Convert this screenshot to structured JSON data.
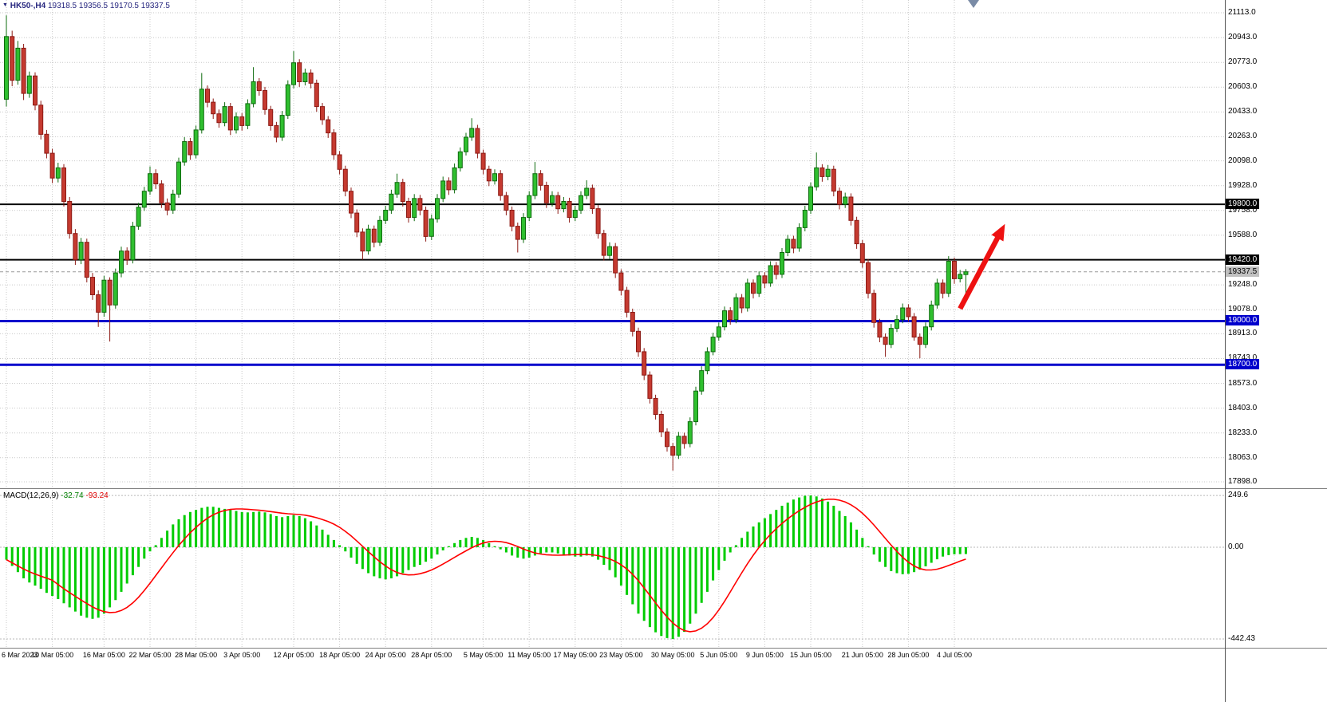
{
  "header": {
    "title": "HK50-,H4",
    "ohlc_text": "19318.5 19356.5 19170.5 19337.5"
  },
  "icons": {
    "chart_menu_arrow": "▼"
  },
  "colors": {
    "background": "#FFFFFF",
    "grid": "#C9C9C9",
    "up_fill": "#2FBF2F",
    "up_border": "#0E6B0E",
    "down_fill": "#C53A30",
    "down_border": "#8C1A14",
    "macd_histogram": "#00CC00",
    "macd_signal": "#FF0000",
    "level_black": "#000000",
    "level_blue": "#0000CC",
    "bid_line": "#999999",
    "arrow": "#EE1111",
    "title_text": "#26267F"
  },
  "chart_data": {
    "type": "candlestick",
    "symbol": "HK50-",
    "timeframe": "H4",
    "last_ohlc": {
      "open": 19318.5,
      "high": 19356.5,
      "low": 19170.5,
      "close": 19337.5
    },
    "price_axis_values": [
      21113.0,
      20943.0,
      20773.0,
      20603.0,
      20433.0,
      20263.0,
      20098.0,
      19928.0,
      19758.0,
      19588.0,
      19248.0,
      19078.0,
      18913.0,
      18743.0,
      18573.0,
      18403.0,
      18233.0,
      18063.0,
      17898.0
    ],
    "time_axis": [
      {
        "bar": 0,
        "label": "6 Mar 2023"
      },
      {
        "bar": 8,
        "label": "10 Mar 05:00"
      },
      {
        "bar": 17,
        "label": "16 Mar 05:00"
      },
      {
        "bar": 25,
        "label": "22 Mar 05:00"
      },
      {
        "bar": 33,
        "label": "28 Mar 05:00"
      },
      {
        "bar": 41,
        "label": "3 Apr 05:00"
      },
      {
        "bar": 50,
        "label": "12 Apr 05:00"
      },
      {
        "bar": 58,
        "label": "18 Apr 05:00"
      },
      {
        "bar": 66,
        "label": "24 Apr 05:00"
      },
      {
        "bar": 74,
        "label": "28 Apr 05:00"
      },
      {
        "bar": 83,
        "label": "5 May 05:00"
      },
      {
        "bar": 91,
        "label": "11 May 05:00"
      },
      {
        "bar": 99,
        "label": "17 May 05:00"
      },
      {
        "bar": 107,
        "label": "23 May 05:00"
      },
      {
        "bar": 116,
        "label": "30 May 05:00"
      },
      {
        "bar": 124,
        "label": "5 Jun 05:00"
      },
      {
        "bar": 132,
        "label": "9 Jun 05:00"
      },
      {
        "bar": 140,
        "label": "15 Jun 05:00"
      },
      {
        "bar": 149,
        "label": "21 Jun 05:00"
      },
      {
        "bar": 157,
        "label": "28 Jun 05:00"
      },
      {
        "bar": 165,
        "label": "4 Jul 05:00"
      }
    ],
    "levels": [
      {
        "price": 19800.0,
        "label": "19800.0",
        "color": "#000000",
        "line_width": 2,
        "label_bg": "#000000",
        "label_color": "#FFFFFF"
      },
      {
        "price": 19420.0,
        "label": "19420.0",
        "color": "#000000",
        "line_width": 2,
        "label_bg": "#000000",
        "label_color": "#FFFFFF"
      },
      {
        "price": 19000.0,
        "label": "19000.0",
        "color": "#0000CC",
        "line_width": 3,
        "label_bg": "#0000CC",
        "label_color": "#FFFFFF"
      },
      {
        "price": 18700.0,
        "label": "18700.0",
        "color": "#0000CC",
        "line_width": 3,
        "label_bg": "#0000CC",
        "label_color": "#FFFFFF"
      }
    ],
    "bid_line": {
      "price": 19337.5,
      "label": "19337.5",
      "color": "#999999",
      "label_bg": "#C0C0C0",
      "label_color": "#000000"
    },
    "arrow": {
      "from_bar": 166,
      "from_price": 19085,
      "to_bar": 173.8,
      "to_price": 19665,
      "color": "#EE1111"
    },
    "candles": [
      [
        20520,
        21095,
        20470,
        20950
      ],
      [
        20950,
        20990,
        20610,
        20650
      ],
      [
        20650,
        20920,
        20620,
        20870
      ],
      [
        20870,
        20900,
        20515,
        20560
      ],
      [
        20560,
        20710,
        20530,
        20680
      ],
      [
        20680,
        20705,
        20445,
        20480
      ],
      [
        20480,
        20510,
        20245,
        20280
      ],
      [
        20280,
        20310,
        20115,
        20150
      ],
      [
        20150,
        20180,
        19945,
        19980
      ],
      [
        19980,
        20085,
        19950,
        20050
      ],
      [
        20050,
        20075,
        19785,
        19820
      ],
      [
        19820,
        19850,
        19565,
        19600
      ],
      [
        19600,
        19630,
        19385,
        19420
      ],
      [
        19420,
        19570,
        19390,
        19540
      ],
      [
        19540,
        19565,
        19265,
        19300
      ],
      [
        19300,
        19330,
        19145,
        19180
      ],
      [
        19180,
        19210,
        18960,
        19060
      ],
      [
        19060,
        19310,
        19030,
        19280
      ],
      [
        19280,
        19300,
        18860,
        19110
      ],
      [
        19110,
        19360,
        19085,
        19330
      ],
      [
        19330,
        19510,
        19300,
        19480
      ],
      [
        19480,
        19505,
        19385,
        19420
      ],
      [
        19420,
        19680,
        19395,
        19650
      ],
      [
        19650,
        19810,
        19625,
        19780
      ],
      [
        19780,
        19920,
        19755,
        19890
      ],
      [
        19890,
        20060,
        19865,
        20010
      ],
      [
        20010,
        20040,
        19905,
        19940
      ],
      [
        19940,
        19965,
        19775,
        19810
      ],
      [
        19810,
        19840,
        19725,
        19760
      ],
      [
        19760,
        19900,
        19735,
        19870
      ],
      [
        19870,
        20120,
        19845,
        20090
      ],
      [
        20090,
        20260,
        20065,
        20230
      ],
      [
        20230,
        20255,
        20105,
        20140
      ],
      [
        20140,
        20340,
        20115,
        20310
      ],
      [
        20310,
        20700,
        20285,
        20590
      ],
      [
        20590,
        20615,
        20465,
        20500
      ],
      [
        20500,
        20525,
        20385,
        20420
      ],
      [
        20420,
        20450,
        20325,
        20360
      ],
      [
        20360,
        20500,
        20335,
        20470
      ],
      [
        20470,
        20495,
        20275,
        20310
      ],
      [
        20310,
        20430,
        20285,
        20400
      ],
      [
        20400,
        20425,
        20305,
        20340
      ],
      [
        20340,
        20520,
        20315,
        20490
      ],
      [
        20490,
        20740,
        20465,
        20640
      ],
      [
        20640,
        20665,
        20545,
        20580
      ],
      [
        20580,
        20605,
        20415,
        20450
      ],
      [
        20450,
        20475,
        20305,
        20340
      ],
      [
        20340,
        20365,
        20225,
        20260
      ],
      [
        20260,
        20440,
        20235,
        20410
      ],
      [
        20410,
        20650,
        20385,
        20620
      ],
      [
        20620,
        20850,
        20595,
        20770
      ],
      [
        20770,
        20795,
        20605,
        20640
      ],
      [
        20640,
        20730,
        20615,
        20700
      ],
      [
        20700,
        20725,
        20595,
        20630
      ],
      [
        20630,
        20655,
        20435,
        20470
      ],
      [
        20470,
        20495,
        20345,
        20380
      ],
      [
        20380,
        20405,
        20255,
        20290
      ],
      [
        20290,
        20315,
        20105,
        20140
      ],
      [
        20140,
        20165,
        20005,
        20040
      ],
      [
        20040,
        20065,
        19855,
        19890
      ],
      [
        19890,
        19915,
        19705,
        19740
      ],
      [
        19740,
        19765,
        19575,
        19610
      ],
      [
        19610,
        19635,
        19420,
        19480
      ],
      [
        19480,
        19660,
        19455,
        19630
      ],
      [
        19630,
        19655,
        19505,
        19540
      ],
      [
        19540,
        19720,
        19515,
        19690
      ],
      [
        19690,
        19790,
        19665,
        19760
      ],
      [
        19760,
        19900,
        19735,
        19870
      ],
      [
        19870,
        20010,
        19845,
        19950
      ],
      [
        19950,
        19975,
        19785,
        19820
      ],
      [
        19820,
        19845,
        19675,
        19710
      ],
      [
        19710,
        19870,
        19685,
        19840
      ],
      [
        19840,
        19865,
        19725,
        19760
      ],
      [
        19760,
        19785,
        19545,
        19580
      ],
      [
        19580,
        19730,
        19555,
        19700
      ],
      [
        19700,
        19870,
        19675,
        19840
      ],
      [
        19840,
        19990,
        19815,
        19960
      ],
      [
        19960,
        19985,
        19865,
        19900
      ],
      [
        19900,
        20080,
        19875,
        20050
      ],
      [
        20050,
        20190,
        20025,
        20160
      ],
      [
        20160,
        20290,
        20135,
        20260
      ],
      [
        20260,
        20390,
        20235,
        20320
      ],
      [
        20320,
        20345,
        20115,
        20150
      ],
      [
        20150,
        20175,
        20005,
        20040
      ],
      [
        20040,
        20065,
        19925,
        19960
      ],
      [
        19960,
        20040,
        19935,
        20010
      ],
      [
        20010,
        20035,
        19825,
        19860
      ],
      [
        19860,
        19885,
        19725,
        19760
      ],
      [
        19760,
        19785,
        19615,
        19650
      ],
      [
        19650,
        19675,
        19470,
        19560
      ],
      [
        19560,
        19740,
        19535,
        19710
      ],
      [
        19710,
        19890,
        19685,
        19860
      ],
      [
        19860,
        20090,
        19835,
        20010
      ],
      [
        20010,
        20035,
        19895,
        19930
      ],
      [
        19930,
        19955,
        19775,
        19810
      ],
      [
        19810,
        19890,
        19785,
        19860
      ],
      [
        19860,
        19885,
        19735,
        19770
      ],
      [
        19770,
        19850,
        19745,
        19820
      ],
      [
        19820,
        19845,
        19675,
        19710
      ],
      [
        19710,
        19790,
        19685,
        19760
      ],
      [
        19760,
        19890,
        19735,
        19860
      ],
      [
        19860,
        19965,
        19835,
        19910
      ],
      [
        19910,
        19935,
        19735,
        19770
      ],
      [
        19770,
        19795,
        19565,
        19600
      ],
      [
        19600,
        19625,
        19415,
        19450
      ],
      [
        19450,
        19540,
        19425,
        19510
      ],
      [
        19510,
        19535,
        19295,
        19330
      ],
      [
        19330,
        19355,
        19175,
        19210
      ],
      [
        19210,
        19235,
        19025,
        19060
      ],
      [
        19060,
        19085,
        18895,
        18930
      ],
      [
        18930,
        18955,
        18755,
        18790
      ],
      [
        18790,
        18815,
        18595,
        18630
      ],
      [
        18630,
        18655,
        18435,
        18470
      ],
      [
        18470,
        18495,
        18325,
        18360
      ],
      [
        18360,
        18385,
        18205,
        18240
      ],
      [
        18240,
        18265,
        18105,
        18140
      ],
      [
        18140,
        18165,
        17975,
        18080
      ],
      [
        18080,
        18240,
        18055,
        18210
      ],
      [
        18210,
        18235,
        18125,
        18160
      ],
      [
        18160,
        18340,
        18135,
        18310
      ],
      [
        18310,
        18550,
        18285,
        18520
      ],
      [
        18520,
        18690,
        18495,
        18660
      ],
      [
        18660,
        18820,
        18635,
        18790
      ],
      [
        18790,
        18920,
        18765,
        18890
      ],
      [
        18890,
        18990,
        18865,
        18960
      ],
      [
        18960,
        19100,
        18935,
        19070
      ],
      [
        19070,
        19095,
        18975,
        19010
      ],
      [
        19010,
        19190,
        18985,
        19160
      ],
      [
        19160,
        19185,
        19055,
        19090
      ],
      [
        19090,
        19290,
        19065,
        19260
      ],
      [
        19260,
        19285,
        19155,
        19190
      ],
      [
        19190,
        19340,
        19165,
        19310
      ],
      [
        19310,
        19335,
        19225,
        19260
      ],
      [
        19260,
        19410,
        19235,
        19380
      ],
      [
        19380,
        19405,
        19285,
        19320
      ],
      [
        19320,
        19500,
        19295,
        19470
      ],
      [
        19470,
        19590,
        19445,
        19560
      ],
      [
        19560,
        19585,
        19465,
        19500
      ],
      [
        19500,
        19670,
        19475,
        19640
      ],
      [
        19640,
        19790,
        19615,
        19760
      ],
      [
        19760,
        19950,
        19735,
        19920
      ],
      [
        19920,
        20155,
        19895,
        20050
      ],
      [
        20050,
        20075,
        19955,
        19990
      ],
      [
        19990,
        20070,
        19965,
        20040
      ],
      [
        20040,
        20065,
        19855,
        19890
      ],
      [
        19890,
        19915,
        19765,
        19800
      ],
      [
        19800,
        19880,
        19775,
        19850
      ],
      [
        19850,
        19875,
        19655,
        19690
      ],
      [
        19690,
        19715,
        19495,
        19530
      ],
      [
        19530,
        19555,
        19365,
        19400
      ],
      [
        19400,
        19425,
        19155,
        19190
      ],
      [
        19190,
        19215,
        18955,
        18990
      ],
      [
        18990,
        19015,
        18855,
        18890
      ],
      [
        18890,
        18915,
        18755,
        18840
      ],
      [
        18840,
        18980,
        18815,
        18950
      ],
      [
        18950,
        19040,
        18925,
        19010
      ],
      [
        19010,
        19120,
        18985,
        19090
      ],
      [
        19090,
        19115,
        18995,
        19030
      ],
      [
        19030,
        19055,
        18865,
        18890
      ],
      [
        18890,
        18915,
        18745,
        18840
      ],
      [
        18840,
        18990,
        18815,
        18960
      ],
      [
        18960,
        19140,
        18935,
        19110
      ],
      [
        19110,
        19290,
        19085,
        19260
      ],
      [
        19260,
        19285,
        19155,
        19190
      ],
      [
        19190,
        19445,
        19165,
        19410
      ],
      [
        19410,
        19435,
        19255,
        19290
      ],
      [
        19290,
        19350,
        19265,
        19320
      ],
      [
        19318.5,
        19356.5,
        19170.5,
        19337.5
      ]
    ],
    "macd": {
      "label": "MACD(12,26,9)",
      "main_text": "-32.74",
      "signal_text": "-93.24",
      "signal_period": 9,
      "axis_labels": [
        {
          "value": 249.6,
          "text": "249.6"
        },
        {
          "value": 0,
          "text": "0.00"
        },
        {
          "value": -442.43,
          "text": "-442.43"
        }
      ],
      "histogram": [
        -60,
        -90,
        -120,
        -150,
        -170,
        -185,
        -200,
        -220,
        -235,
        -250,
        -270,
        -290,
        -310,
        -330,
        -340,
        -345,
        -340,
        -320,
        -290,
        -255,
        -215,
        -175,
        -135,
        -95,
        -55,
        -20,
        10,
        45,
        80,
        110,
        135,
        155,
        170,
        180,
        190,
        195,
        195,
        190,
        185,
        180,
        175,
        170,
        168,
        170,
        172,
        168,
        160,
        150,
        145,
        150,
        155,
        150,
        140,
        125,
        105,
        85,
        60,
        35,
        10,
        -20,
        -50,
        -80,
        -105,
        -125,
        -140,
        -150,
        -155,
        -150,
        -140,
        -125,
        -110,
        -95,
        -85,
        -70,
        -55,
        -35,
        -15,
        5,
        20,
        35,
        45,
        50,
        45,
        35,
        20,
        5,
        -10,
        -25,
        -40,
        -50,
        -55,
        -50,
        -40,
        -30,
        -25,
        -25,
        -30,
        -35,
        -40,
        -45,
        -45,
        -40,
        -45,
        -60,
        -85,
        -110,
        -145,
        -185,
        -230,
        -275,
        -320,
        -355,
        -385,
        -410,
        -428,
        -438,
        -442.43,
        -432,
        -408,
        -368,
        -320,
        -268,
        -215,
        -160,
        -110,
        -65,
        -25,
        10,
        45,
        75,
        100,
        120,
        140,
        160,
        180,
        200,
        215,
        230,
        240,
        248,
        249.6,
        245,
        235,
        220,
        200,
        175,
        150,
        120,
        85,
        45,
        5,
        -35,
        -70,
        -95,
        -115,
        -125,
        -130,
        -128,
        -120,
        -108,
        -92,
        -75,
        -58,
        -45,
        -38,
        -34,
        -33,
        -32.74
      ]
    }
  }
}
